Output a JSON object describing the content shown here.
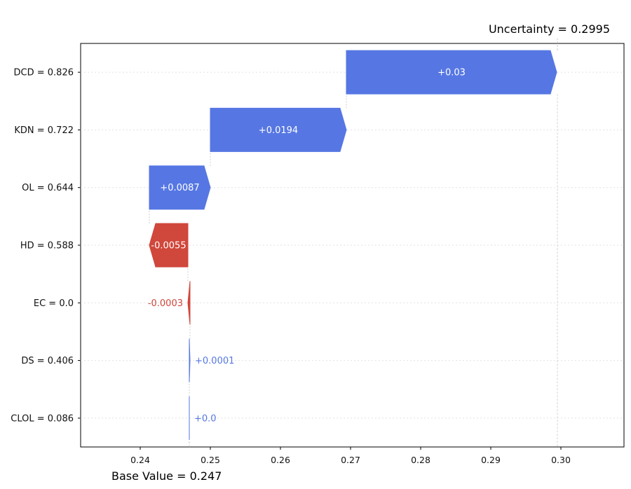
{
  "chart_data": {
    "type": "bar",
    "orientation": "horizontal-waterfall",
    "xlim": [
      0.2315,
      0.309
    ],
    "xticks": [
      "0.24",
      "0.25",
      "0.26",
      "0.27",
      "0.28",
      "0.29",
      "0.30"
    ],
    "base_value": 0.247,
    "final_value": 0.2995,
    "base_label": "Base Value",
    "base_value_text": "0.247",
    "final_label": "Uncertainty",
    "final_value_text": "0.2995",
    "grid": "dotted horizontal at each bar",
    "features": [
      {
        "label": "CLOL = 0.086",
        "contribution": 0.0,
        "text": "+0.0"
      },
      {
        "label": "DS = 0.406",
        "contribution": 0.0001,
        "text": "+0.0001"
      },
      {
        "label": "EC = 0.0",
        "contribution": -0.0003,
        "text": "-0.0003"
      },
      {
        "label": "HD = 0.588",
        "contribution": -0.0055,
        "text": "-0.0055"
      },
      {
        "label": "OL = 0.644",
        "contribution": 0.0087,
        "text": "+0.0087"
      },
      {
        "label": "KDN = 0.722",
        "contribution": 0.0194,
        "text": "+0.0194"
      },
      {
        "label": "DCD = 0.826",
        "contribution": 0.03,
        "text": "+0.03"
      }
    ],
    "colors": {
      "positive": "#5677e3",
      "negative": "#d0473b"
    }
  }
}
